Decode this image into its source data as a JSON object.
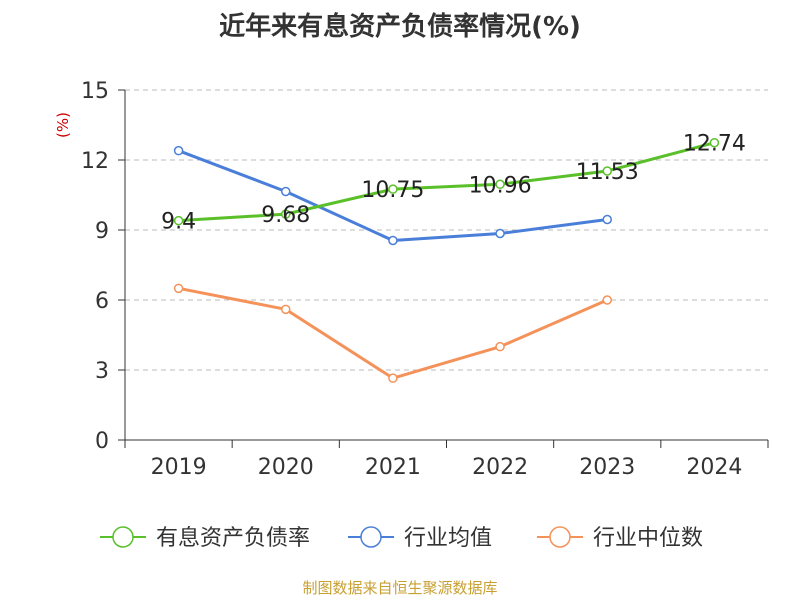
{
  "chart_data": {
    "type": "line",
    "title": "近年来有息资产负债率情况(%)",
    "ylabel": "(%)",
    "xlabel": "",
    "categories": [
      "2019",
      "2020",
      "2021",
      "2022",
      "2023",
      "2024"
    ],
    "ylim": [
      0,
      15
    ],
    "yticks": [
      0,
      3,
      6,
      9,
      12,
      15
    ],
    "grid": true,
    "legend_position": "bottom",
    "series": [
      {
        "name": "有息资产负债率",
        "color": "#5ac02a",
        "values": [
          9.4,
          9.68,
          10.75,
          10.96,
          11.53,
          12.74
        ],
        "labels": [
          "9.4",
          "9.68",
          "10.75",
          "10.96",
          "11.53",
          "12.74"
        ]
      },
      {
        "name": "行业均值",
        "color": "#4a7fd9",
        "values": [
          12.4,
          10.65,
          8.55,
          8.85,
          9.45,
          null
        ]
      },
      {
        "name": "行业中位数",
        "color": "#f4925a",
        "values": [
          6.5,
          5.6,
          2.65,
          4.0,
          6.0,
          null
        ]
      }
    ]
  },
  "source": "制图数据来自恒生聚源数据库"
}
